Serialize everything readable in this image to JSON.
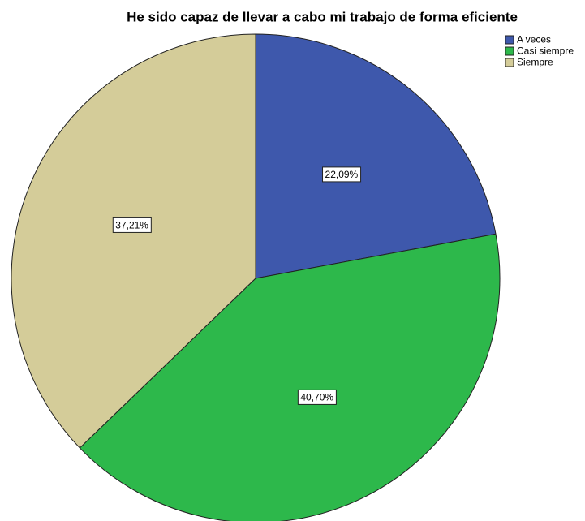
{
  "chart_data": {
    "type": "pie",
    "title": "He sido capaz de llevar a cabo mi trabajo de forma eficiente",
    "categories": [
      "A veces",
      "Casi siempre",
      "Siempre"
    ],
    "values": [
      22.09,
      40.7,
      37.21
    ],
    "value_labels": [
      "22,09%",
      "40,70%",
      "37,21%"
    ],
    "colors": [
      "#3e58ac",
      "#2db84b",
      "#d4cc99"
    ],
    "legend": "top-right"
  }
}
